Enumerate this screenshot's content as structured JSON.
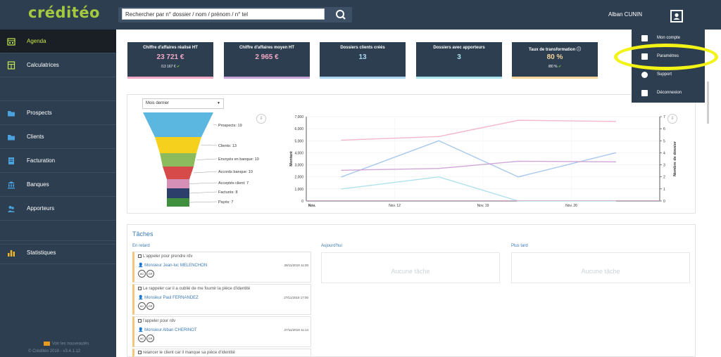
{
  "app": {
    "logo": "créditéo",
    "search_placeholder": "Rechercher par n° dossier / nom / prénom / n° tel",
    "user_name": "Alban CUNIN"
  },
  "sidebar": {
    "items": [
      {
        "label": "Agenda",
        "icon": "calendar-icon"
      },
      {
        "label": "Calculatrices",
        "icon": "calculator-icon"
      },
      {
        "label": "Prospects",
        "icon": "folder-icon"
      },
      {
        "label": "Clients",
        "icon": "folder-icon"
      },
      {
        "label": "Facturation",
        "icon": "invoice-icon"
      },
      {
        "label": "Banques",
        "icon": "bank-icon"
      },
      {
        "label": "Apporteurs",
        "icon": "users-icon"
      },
      {
        "label": "Statistiques",
        "icon": "bar-chart-icon"
      }
    ],
    "news_link": "Voir les nouveautés",
    "version": "© Crédítéo 2018 - v3.4.1.12"
  },
  "kpis": [
    {
      "title": "Chiffre d'affaires réalisé HT",
      "value": "23 721 €",
      "sub": "/13 167 €",
      "value_color": "#f2a7c4",
      "bar_color": "#f2a7c4"
    },
    {
      "title": "Chiffre d'affaires moyen HT",
      "value": "2 965 €",
      "sub": "",
      "value_color": "#f2a7c4",
      "bar_color": "#c9a3d6"
    },
    {
      "title": "Dossiers clients créés",
      "value": "13",
      "sub": "",
      "value_color": "#a9d4f2",
      "bar_color": "#a9d4f2"
    },
    {
      "title": "Dossiers avec apporteurs",
      "value": "3",
      "sub": "",
      "value_color": "#a9e4ef",
      "bar_color": "#a9e4ef"
    },
    {
      "title": "Taux de transformation",
      "value": "80 %",
      "sub": "/80 %",
      "value_color": "#f7d49a",
      "bar_color": "#f7d49a"
    }
  ],
  "user_menu": {
    "items": [
      "Mon compte",
      "Paramètres",
      "Support",
      "Déconnexion"
    ]
  },
  "chart_panel": {
    "period_select": "Mois dernier",
    "funnel": [
      {
        "label": "Prospects: 19",
        "color": "#5bb6e0"
      },
      {
        "label": "Clients: 13",
        "color": "#f5d11e"
      },
      {
        "label": "Envoyés en banque: 10",
        "color": "#8bbb5c"
      },
      {
        "label": "Accords banque: 10",
        "color": "#d64a4a"
      },
      {
        "label": "Acceptés client: 7",
        "color": "#d68fb6"
      },
      {
        "label": "Facturés: 8",
        "color": "#2c3f6b"
      },
      {
        "label": "Payés: 7",
        "color": "#3f8f3f"
      }
    ]
  },
  "chart_data": {
    "type": "line",
    "x": [
      "Nov.",
      "Nov. 12",
      "Nov. 19",
      "Nov. 26"
    ],
    "ylabel": "Montant",
    "y2label": "Nombre de dossier",
    "ylim": [
      0,
      7000
    ],
    "y2lim": [
      0,
      7
    ],
    "yticks": [
      "0",
      "1,000",
      "2,000",
      "3,000",
      "4,000",
      "5,000",
      "6,000",
      "7,000"
    ],
    "y2ticks": [
      "0",
      "1",
      "2",
      "3",
      "4",
      "5",
      "6",
      "7"
    ],
    "series": [
      {
        "color": "#f4b6c8",
        "axis": "left",
        "points": [
          [
            0.4,
            5050
          ],
          [
            1.5,
            5350
          ],
          [
            2.4,
            6700
          ],
          [
            3.5,
            6600
          ]
        ]
      },
      {
        "color": "#a8c8ee",
        "axis": "right",
        "points": [
          [
            0.4,
            2
          ],
          [
            1.5,
            5
          ],
          [
            2.4,
            2
          ],
          [
            3.5,
            4
          ]
        ]
      },
      {
        "color": "#d1a6d8",
        "axis": "left",
        "points": [
          [
            0.4,
            2550
          ],
          [
            1.5,
            2700
          ],
          [
            2.4,
            3300
          ],
          [
            3.5,
            3250
          ]
        ]
      },
      {
        "color": "#b0e2ee",
        "axis": "right",
        "points": [
          [
            0.4,
            1
          ],
          [
            1.5,
            2
          ],
          [
            2.4,
            0
          ],
          [
            3.5,
            0
          ]
        ]
      }
    ]
  },
  "tasks": {
    "title": "Tâches",
    "columns": [
      "En retard",
      "Aujourd'hui",
      "Plus tard"
    ],
    "empty_text": "Aucune tâche",
    "late": [
      {
        "text": "L'appeler pour prendre rdv",
        "contact": "Monsieur Jean-luc MELENCHON",
        "date": "28/11/2018 11:00",
        "tags": [
          "AC",
          "GR"
        ]
      },
      {
        "text": "Le rappeler car il a oublié de me fournir la pièce d'identité",
        "contact": "Monsieur Paul FERNANDEZ",
        "date": "27/11/2018 17:00",
        "tags": [
          "AC",
          "GR"
        ]
      },
      {
        "text": "l'appeler pour rdv",
        "contact": "Monsieur Alban CHERINOT",
        "date": "27/11/2018 11:14",
        "tags": [
          "AC",
          "GR"
        ]
      },
      {
        "text": "relancer le client car il manque sa pièce d'identité",
        "contact": "",
        "date": "",
        "tags": []
      }
    ]
  }
}
